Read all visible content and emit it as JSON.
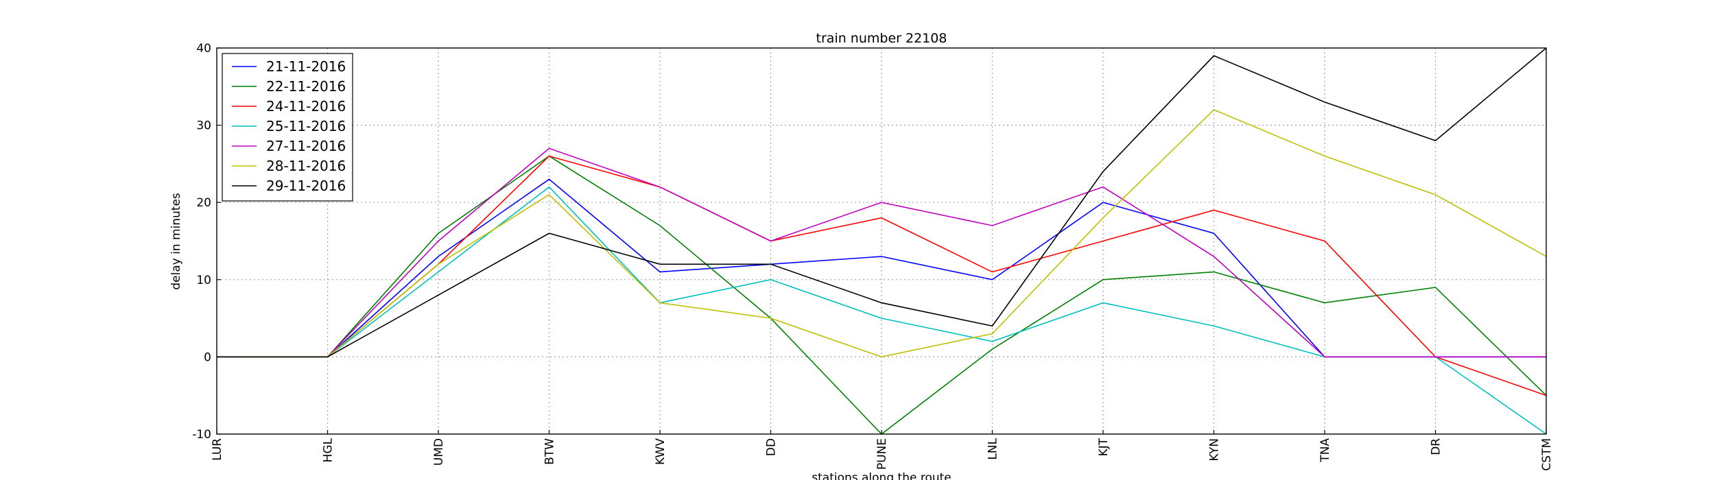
{
  "chart_data": {
    "type": "line",
    "title": "train number 22108",
    "xlabel": "stations along the route",
    "ylabel": "delay in minutes",
    "categories": [
      "LUR",
      "HGL",
      "UMD",
      "BTW",
      "KWV",
      "DD",
      "PUNE",
      "LNL",
      "KJT",
      "KYN",
      "TNA",
      "DR",
      "CSTM"
    ],
    "ylim": [
      -10,
      40
    ],
    "yticks": [
      -10,
      0,
      10,
      20,
      30,
      40
    ],
    "grid": true,
    "legend_position": "top-left",
    "series": [
      {
        "name": "21-11-2016",
        "color": "#0000ff",
        "values": [
          0,
          0,
          13,
          23,
          11,
          12,
          13,
          10,
          20,
          16,
          0,
          0,
          0
        ]
      },
      {
        "name": "22-11-2016",
        "color": "#008000",
        "values": [
          0,
          0,
          16,
          26,
          17,
          5,
          -10,
          1,
          10,
          11,
          7,
          9,
          -5
        ]
      },
      {
        "name": "24-11-2016",
        "color": "#ff0000",
        "values": [
          0,
          0,
          12,
          26,
          22,
          15,
          18,
          11,
          15,
          19,
          15,
          0,
          -5
        ]
      },
      {
        "name": "25-11-2016",
        "color": "#00bfbf",
        "values": [
          0,
          0,
          11,
          22,
          7,
          10,
          5,
          2,
          7,
          4,
          0,
          0,
          -10
        ]
      },
      {
        "name": "27-11-2016",
        "color": "#bf00bf",
        "values": [
          0,
          0,
          15,
          27,
          22,
          15,
          20,
          17,
          22,
          13,
          0,
          0,
          0
        ]
      },
      {
        "name": "28-11-2016",
        "color": "#bfbf00",
        "values": [
          0,
          0,
          12,
          21,
          7,
          5,
          0,
          3,
          18,
          32,
          26,
          21,
          13
        ]
      },
      {
        "name": "29-11-2016",
        "color": "#000000",
        "values": [
          0,
          0,
          8,
          16,
          12,
          12,
          7,
          4,
          24,
          39,
          33,
          28,
          40
        ]
      }
    ]
  }
}
